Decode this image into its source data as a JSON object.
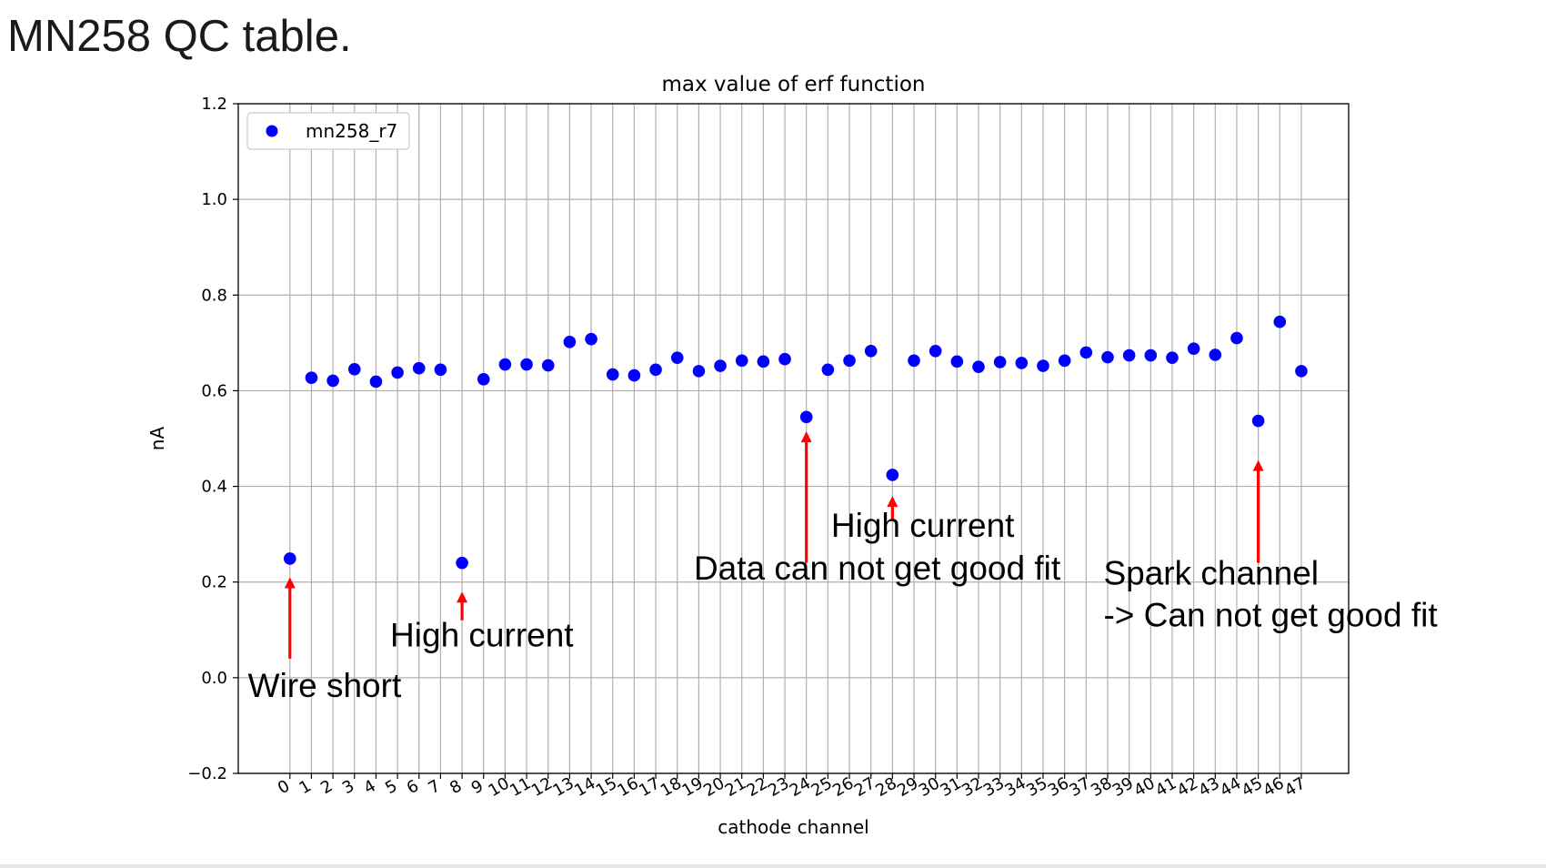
{
  "slide": {
    "title": "MN258 QC table."
  },
  "chart_data": {
    "type": "scatter",
    "title": "max value of erf function",
    "xlabel": "cathode channel",
    "ylabel": "nA",
    "xlim": [
      -2.4,
      49.2
    ],
    "ylim": [
      -0.2,
      1.2
    ],
    "grid": true,
    "legend_position": "top-left",
    "x_ticks": [
      0,
      1,
      2,
      3,
      4,
      5,
      6,
      7,
      8,
      9,
      10,
      11,
      12,
      13,
      14,
      15,
      16,
      17,
      18,
      19,
      20,
      21,
      22,
      23,
      24,
      25,
      26,
      27,
      28,
      29,
      30,
      31,
      32,
      33,
      34,
      35,
      36,
      37,
      38,
      39,
      40,
      41,
      42,
      43,
      44,
      45,
      46,
      47
    ],
    "y_ticks": [
      {
        "value": -0.2,
        "label": "−0.2"
      },
      {
        "value": 0.0,
        "label": "0.0"
      },
      {
        "value": 0.2,
        "label": "0.2"
      },
      {
        "value": 0.4,
        "label": "0.4"
      },
      {
        "value": 0.6,
        "label": "0.6"
      },
      {
        "value": 0.8,
        "label": "0.8"
      },
      {
        "value": 1.0,
        "label": "1.0"
      },
      {
        "value": 1.2,
        "label": "1.2"
      }
    ],
    "series": [
      {
        "name": "mn258_r7",
        "color": "#0000ff",
        "x": [
          0,
          1,
          2,
          3,
          4,
          5,
          6,
          7,
          8,
          9,
          10,
          11,
          12,
          13,
          14,
          15,
          16,
          17,
          18,
          19,
          20,
          21,
          22,
          23,
          24,
          25,
          26,
          27,
          28,
          29,
          30,
          31,
          32,
          33,
          34,
          35,
          36,
          37,
          38,
          39,
          40,
          41,
          42,
          43,
          44,
          45,
          46,
          47
        ],
        "y": [
          0.249,
          0.627,
          0.621,
          0.645,
          0.619,
          0.638,
          0.647,
          0.644,
          0.24,
          0.624,
          0.655,
          0.655,
          0.653,
          0.702,
          0.708,
          0.634,
          0.632,
          0.644,
          0.669,
          0.641,
          0.652,
          0.663,
          0.661,
          0.666,
          0.545,
          0.644,
          0.663,
          0.683,
          0.424,
          0.663,
          0.683,
          0.661,
          0.65,
          0.66,
          0.658,
          0.652,
          0.663,
          0.68,
          0.67,
          0.674,
          0.674,
          0.669,
          0.688,
          0.675,
          0.71,
          0.537,
          0.744,
          0.641
        ]
      }
    ],
    "annotations": [
      {
        "lines": [
          "Wire short"
        ],
        "arrow_x": 0,
        "arrow_from_y": 0.04,
        "arrow_to_y": 0.21,
        "text_x": -1.95,
        "text_y": -0.04
      },
      {
        "lines": [
          "High current"
        ],
        "arrow_x": 8,
        "arrow_from_y": 0.12,
        "arrow_to_y": 0.18,
        "text_x": 4.66,
        "text_y": 0.065
      },
      {
        "lines": [
          "Data can not get good fit"
        ],
        "arrow_x": 24,
        "arrow_from_y": 0.24,
        "arrow_to_y": 0.515,
        "text_x": 18.77,
        "text_y": 0.205
      },
      {
        "lines": [
          "High current"
        ],
        "arrow_x": 28,
        "arrow_from_y": 0.33,
        "arrow_to_y": 0.38,
        "text_x": 25.15,
        "text_y": 0.295
      },
      {
        "lines": [
          "Spark channel",
          "-> Can not get good fit"
        ],
        "arrow_x": 45,
        "arrow_from_y": 0.24,
        "arrow_to_y": 0.455,
        "text_x": 37.81,
        "text_y": 0.195
      }
    ],
    "colors": {
      "points": "#0000ff",
      "arrows": "#ff0000",
      "grid": "#b0b0b0"
    }
  }
}
